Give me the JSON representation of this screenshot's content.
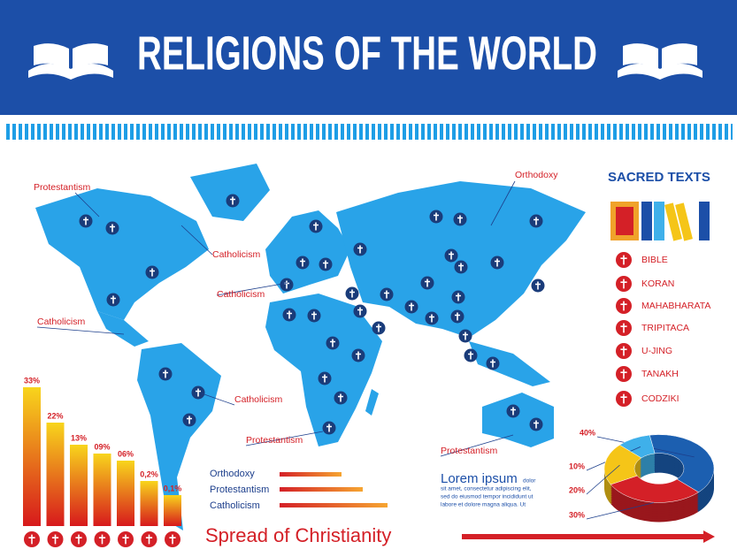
{
  "header": {
    "title": "RELIGIONS OF THE WORLD"
  },
  "map": {
    "labels": [
      "Protestantism",
      "Catholicism",
      "Catholicism",
      "Catholicism",
      "Catholicism",
      "Protestantism",
      "Orthodoxy",
      "Protestantism"
    ]
  },
  "sacred_texts": {
    "title": "SACRED TEXTS",
    "items": [
      "BIBLE",
      "KORAN",
      "MAHABHARATA",
      "TRIPITACA",
      "U-JING",
      "TANAKH",
      "CODZIKI"
    ]
  },
  "bar_chart": {
    "value_labels": [
      "33%",
      "22%",
      "13%",
      "09%",
      "06%",
      "0,2%",
      "0,1%"
    ]
  },
  "legend": {
    "items": [
      "Orthodoxy",
      "Protestantism",
      "Catholicism"
    ]
  },
  "lorem": {
    "title": "Lorem ipsum",
    "body": [
      "dolor",
      "sit amet, consectetur adipiscing elit,",
      "sed do eiusmod tempor incididunt ut",
      "labore et dolore magna aliqua. Ut"
    ]
  },
  "footer": {
    "title": "Spread of Christianity"
  },
  "chart_data": {
    "type": "pie",
    "values": [
      40,
      10,
      20,
      30
    ],
    "value_labels": [
      "40%",
      "10%",
      "20%",
      "30%"
    ],
    "colors": [
      "#1c5fb0",
      "#3fb0ea",
      "#f5c518",
      "#d42027"
    ]
  }
}
